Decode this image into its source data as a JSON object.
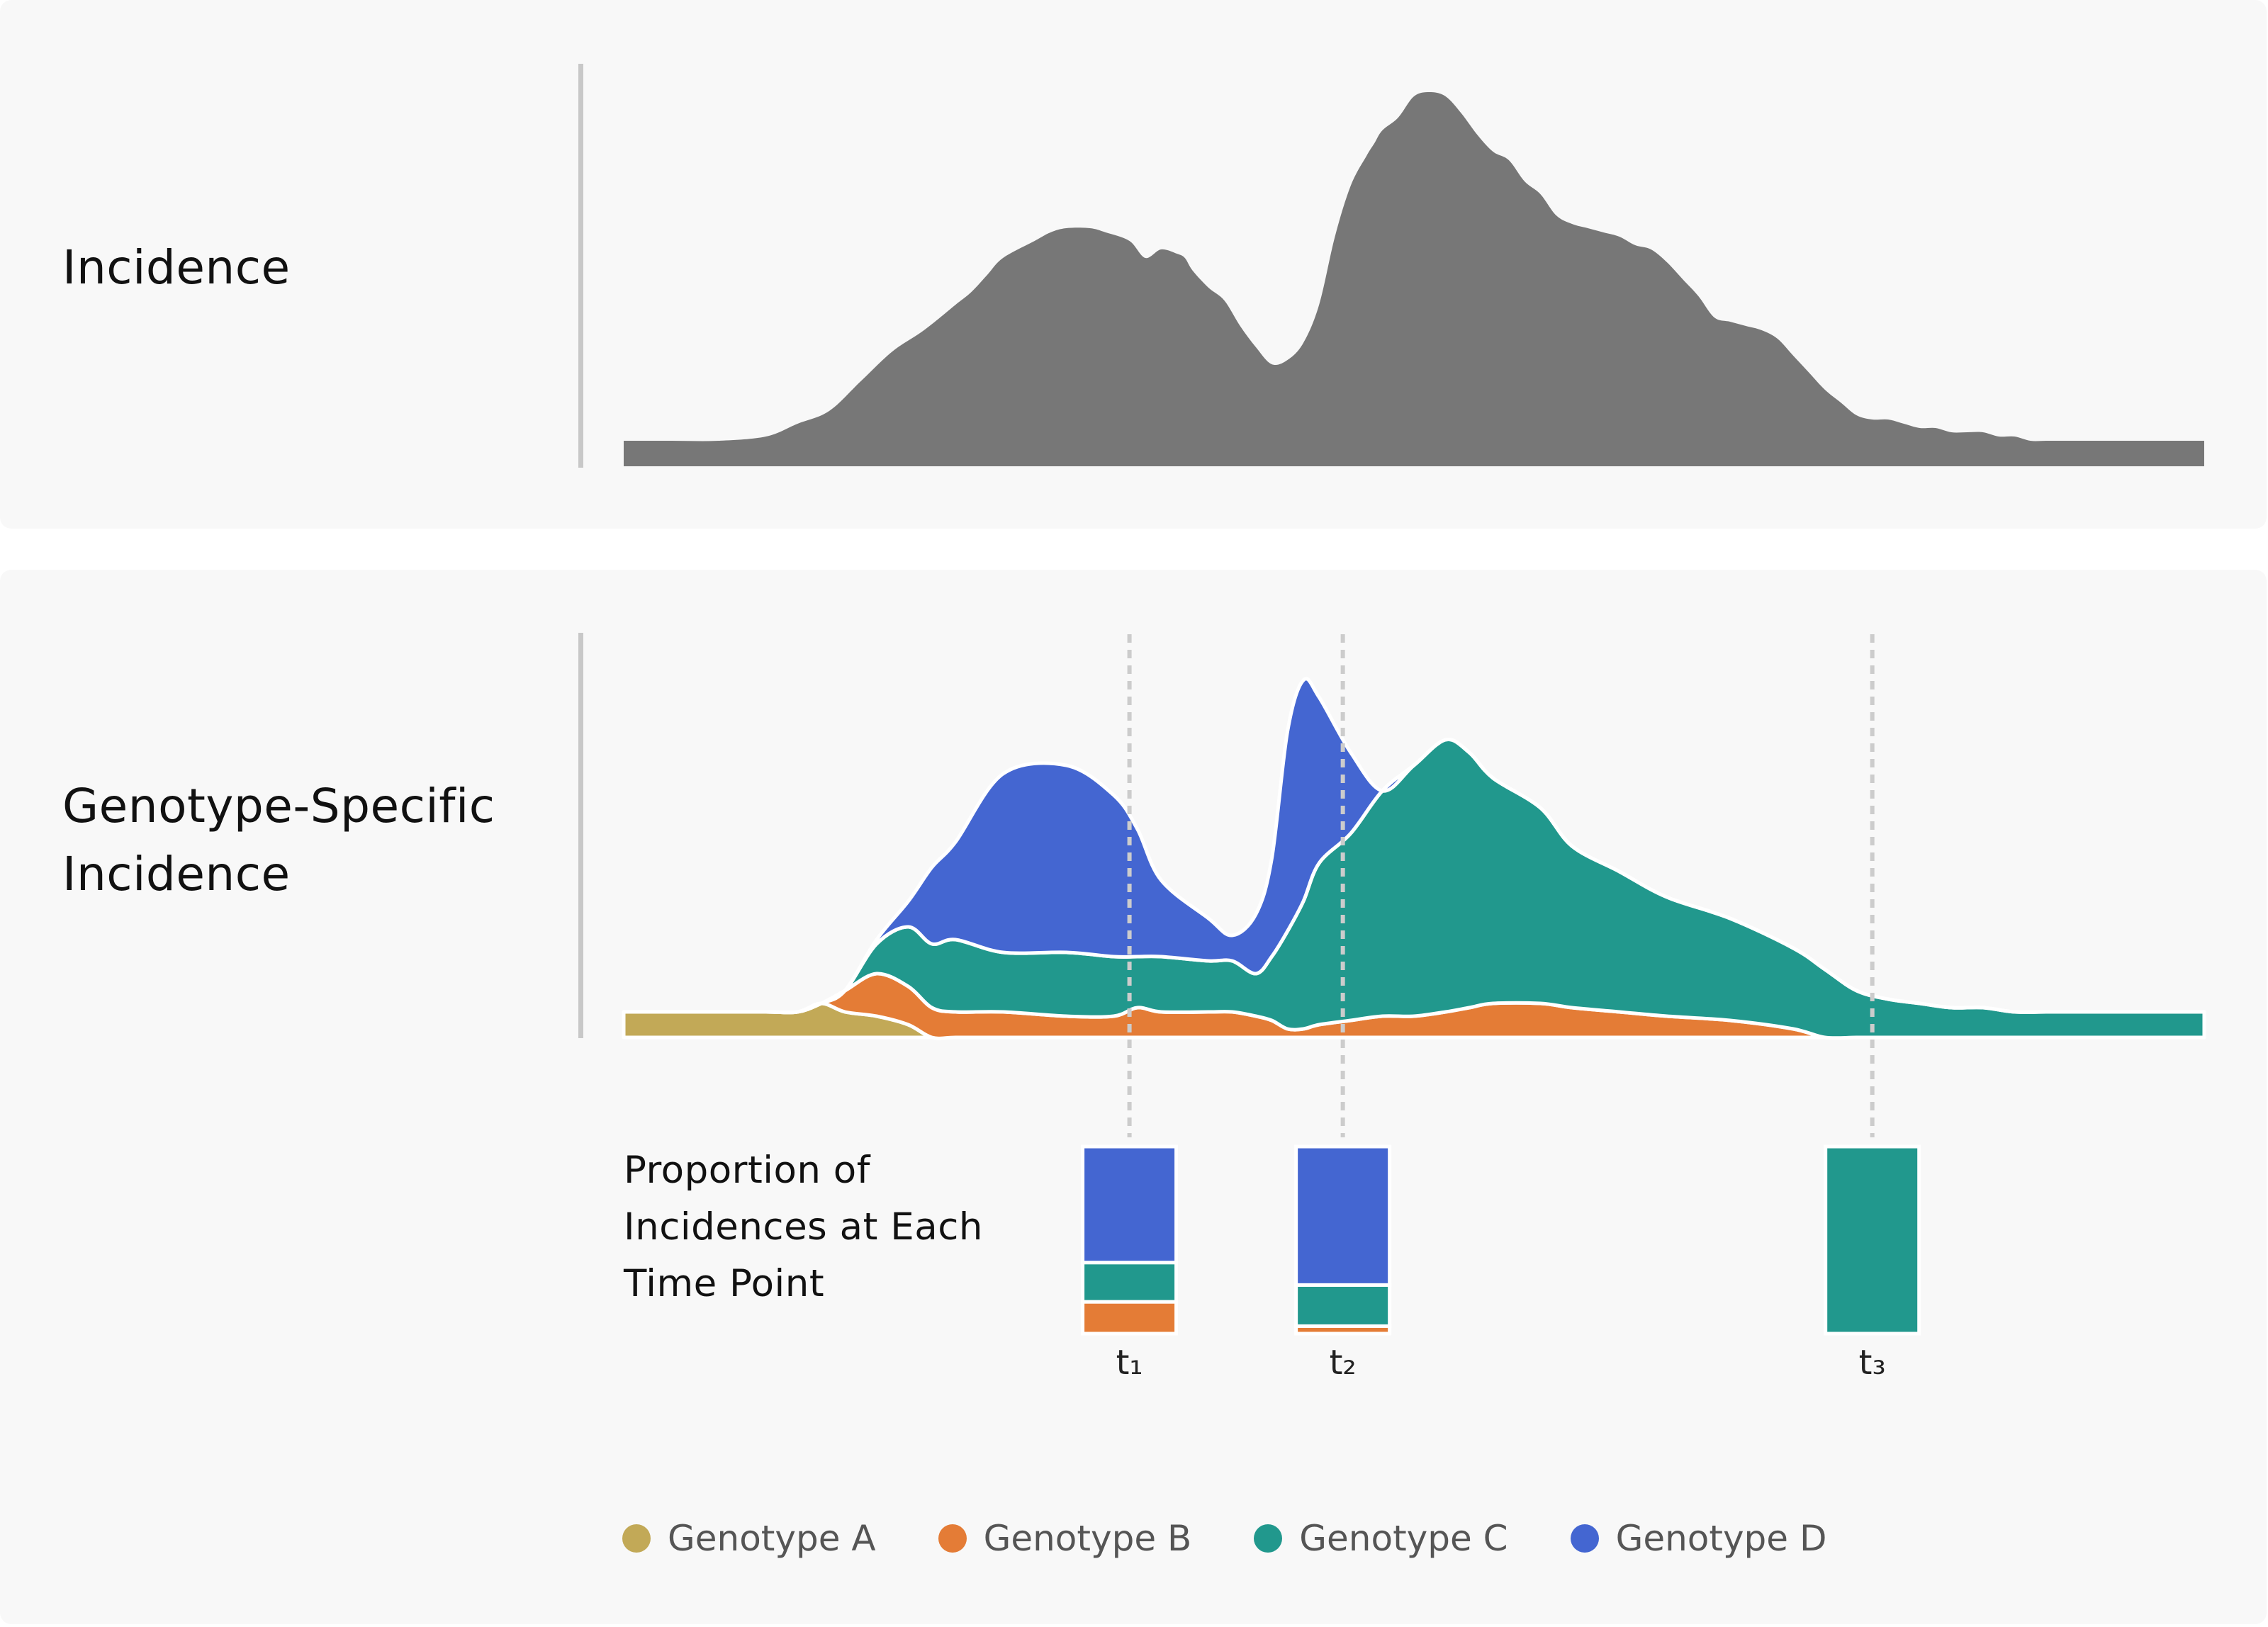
{
  "labels": {
    "incidence": "Incidence",
    "genotype_specific": "Genotype-Specific Incidence",
    "proportion": "Proportion of Incidences at Each Time Point"
  },
  "colors": {
    "total": "#777777",
    "A": "#c2a957",
    "B": "#e47c36",
    "C": "#21988d",
    "D": "#4466d1",
    "panel": "#f8f8f8",
    "divider": "#c8c8c8",
    "guide": "#cccccc"
  },
  "chart_data": [
    {
      "type": "area",
      "title": "",
      "series": [
        {
          "name": "",
          "values": "total_incidence"
        }
      ],
      "x_unit": "time index 0-100",
      "y_range": [
        0,
        100
      ],
      "x": [
        0,
        3,
        6,
        9,
        11,
        13,
        15,
        17,
        19,
        21,
        22,
        23,
        24,
        26,
        27,
        28,
        29.5,
        30.5,
        32,
        33,
        34,
        35,
        35.5,
        36,
        37,
        38,
        39,
        40,
        41,
        42,
        43,
        44,
        45,
        46,
        47,
        47.5,
        48,
        49,
        50,
        51,
        52,
        53,
        54,
        55,
        56,
        57,
        58,
        59,
        60,
        61,
        62,
        63,
        64,
        65,
        66,
        67,
        68,
        69,
        70,
        71,
        72,
        73,
        74,
        75,
        76,
        77,
        78,
        79,
        80,
        81,
        82,
        83,
        84,
        85,
        86,
        87,
        88,
        89,
        90,
        91,
        92,
        93,
        94,
        95,
        96,
        97,
        98,
        99,
        100
      ],
      "total": [
        6,
        6,
        6,
        7,
        10,
        13,
        20,
        27,
        32,
        38,
        41,
        45,
        49,
        53,
        55,
        56,
        56,
        55,
        53,
        49,
        51,
        50,
        49,
        46,
        42,
        39,
        33,
        28,
        24,
        25,
        29,
        38,
        54,
        66,
        73,
        76,
        79,
        82,
        87,
        88,
        87,
        83,
        78,
        74,
        72,
        67,
        64,
        59,
        57,
        56,
        55,
        54,
        52,
        51,
        48,
        44,
        40,
        35,
        34,
        33,
        32,
        30,
        26,
        22,
        18,
        15,
        12,
        11,
        11,
        10,
        9,
        9,
        8,
        8,
        8,
        7,
        7,
        6,
        6,
        6,
        6,
        6,
        6,
        6,
        6,
        6,
        6,
        6,
        6,
        6,
        6
      ]
    },
    {
      "type": "area",
      "title": "",
      "stacked": true,
      "series": [
        {
          "name": "Genotype A"
        },
        {
          "name": "Genotype B"
        },
        {
          "name": "Genotype C"
        },
        {
          "name": "Genotype D"
        }
      ],
      "x": [
        0,
        5,
        9,
        11,
        12.5,
        14,
        16,
        18,
        19.5,
        21,
        24,
        28,
        31,
        32.5,
        34,
        37,
        38.5,
        40,
        41,
        42,
        43,
        44,
        46,
        48,
        50,
        52,
        53.5,
        55,
        58,
        60,
        63,
        66,
        70,
        74,
        76,
        78,
        80,
        82,
        84,
        86,
        88,
        90,
        92,
        94,
        96,
        98,
        100
      ],
      "A": [
        6,
        6,
        6,
        6,
        8,
        6,
        5,
        3,
        0,
        0,
        0,
        0,
        0,
        0,
        0,
        0,
        0,
        0,
        0,
        0,
        0,
        0,
        0,
        0,
        0,
        0,
        0,
        0,
        0,
        0,
        0,
        0,
        0,
        0,
        0,
        0,
        0,
        0,
        0,
        0,
        0,
        0,
        0,
        0,
        0,
        0,
        0
      ],
      "B": [
        0,
        0,
        0,
        0,
        0,
        5,
        10,
        9,
        7,
        6,
        6,
        5,
        5,
        7,
        6,
        6,
        6,
        5,
        4,
        2,
        2,
        3,
        4,
        5,
        5,
        6,
        7,
        8,
        8,
        7,
        6,
        5,
        4,
        2,
        0,
        0,
        0,
        0,
        0,
        0,
        0,
        0,
        0,
        0,
        0,
        0,
        0
      ],
      "C": [
        0,
        0,
        0,
        0,
        0,
        0,
        7,
        14,
        15,
        17,
        14,
        15,
        14,
        12,
        13,
        12,
        12,
        10,
        15,
        23,
        30,
        38,
        44,
        53,
        59,
        64,
        60,
        53,
        46,
        38,
        33,
        28,
        24,
        19,
        16,
        11,
        9,
        8,
        7,
        7,
        6,
        6,
        6,
        6,
        6,
        6,
        6
      ],
      "D": [
        0,
        0,
        0,
        0,
        0,
        0,
        1,
        6,
        18,
        23,
        42,
        44,
        38,
        30,
        18,
        10,
        6,
        14,
        23,
        47,
        52,
        39,
        19,
        0,
        0,
        0,
        0,
        0,
        0,
        0,
        0,
        0,
        0,
        0,
        0,
        0,
        0,
        0,
        0,
        0,
        0,
        0,
        0,
        0,
        0,
        0,
        0
      ]
    },
    {
      "type": "bar",
      "title": "Proportion of Incidences at Each Time Point",
      "stacked": true,
      "categories": [
        "t₁",
        "t₂",
        "t₃"
      ],
      "time_index": [
        32,
        45.5,
        79
      ],
      "series": [
        {
          "name": "Genotype B",
          "values": [
            0.17,
            0.04,
            0.0
          ]
        },
        {
          "name": "Genotype C",
          "values": [
            0.21,
            0.22,
            1.0
          ]
        },
        {
          "name": "Genotype D",
          "values": [
            0.62,
            0.74,
            0.0
          ]
        }
      ]
    }
  ],
  "legend": [
    {
      "key": "A",
      "label": "Genotype A"
    },
    {
      "key": "B",
      "label": "Genotype B"
    },
    {
      "key": "C",
      "label": "Genotype C"
    },
    {
      "key": "D",
      "label": "Genotype D"
    }
  ]
}
